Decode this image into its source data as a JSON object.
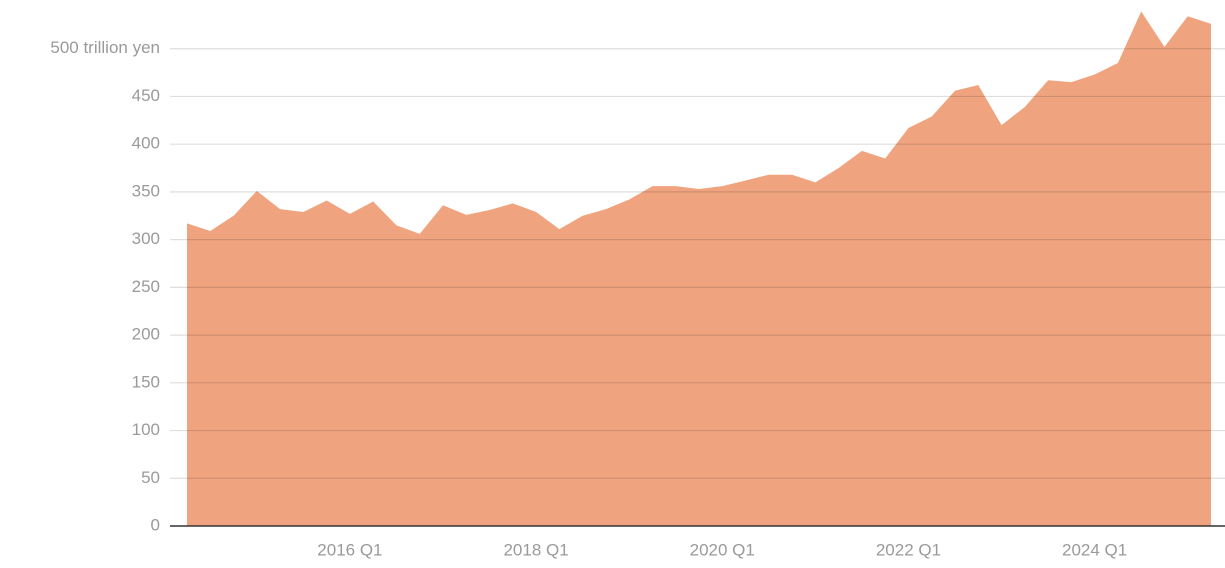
{
  "chart_data": {
    "type": "area",
    "categories": [
      null,
      null,
      null,
      null,
      null,
      null,
      null,
      "2016 Q1",
      null,
      null,
      null,
      null,
      null,
      null,
      null,
      "2018 Q1",
      null,
      null,
      null,
      null,
      null,
      null,
      null,
      "2020 Q1",
      null,
      null,
      null,
      null,
      null,
      null,
      null,
      "2022 Q1",
      null,
      null,
      null,
      null,
      null,
      null,
      null,
      "2024 Q1",
      null,
      null,
      null,
      null,
      null
    ],
    "values": [
      317,
      309,
      325,
      351,
      332,
      329,
      341,
      327,
      340,
      315,
      306,
      336,
      326,
      331,
      338,
      329,
      311,
      325,
      332,
      342,
      356,
      356,
      353,
      356,
      362,
      368,
      368,
      360,
      375,
      393,
      385,
      417,
      429,
      456,
      462,
      420,
      439,
      467,
      465,
      473,
      485,
      539,
      502,
      534,
      526
    ],
    "color": "#efa47f",
    "ylim": [
      0,
      550
    ],
    "yticks": [
      0,
      50,
      100,
      150,
      200,
      250,
      300,
      350,
      400,
      450,
      {
        "value": 500,
        "label": "500 trillion yen"
      }
    ],
    "grid": true
  }
}
